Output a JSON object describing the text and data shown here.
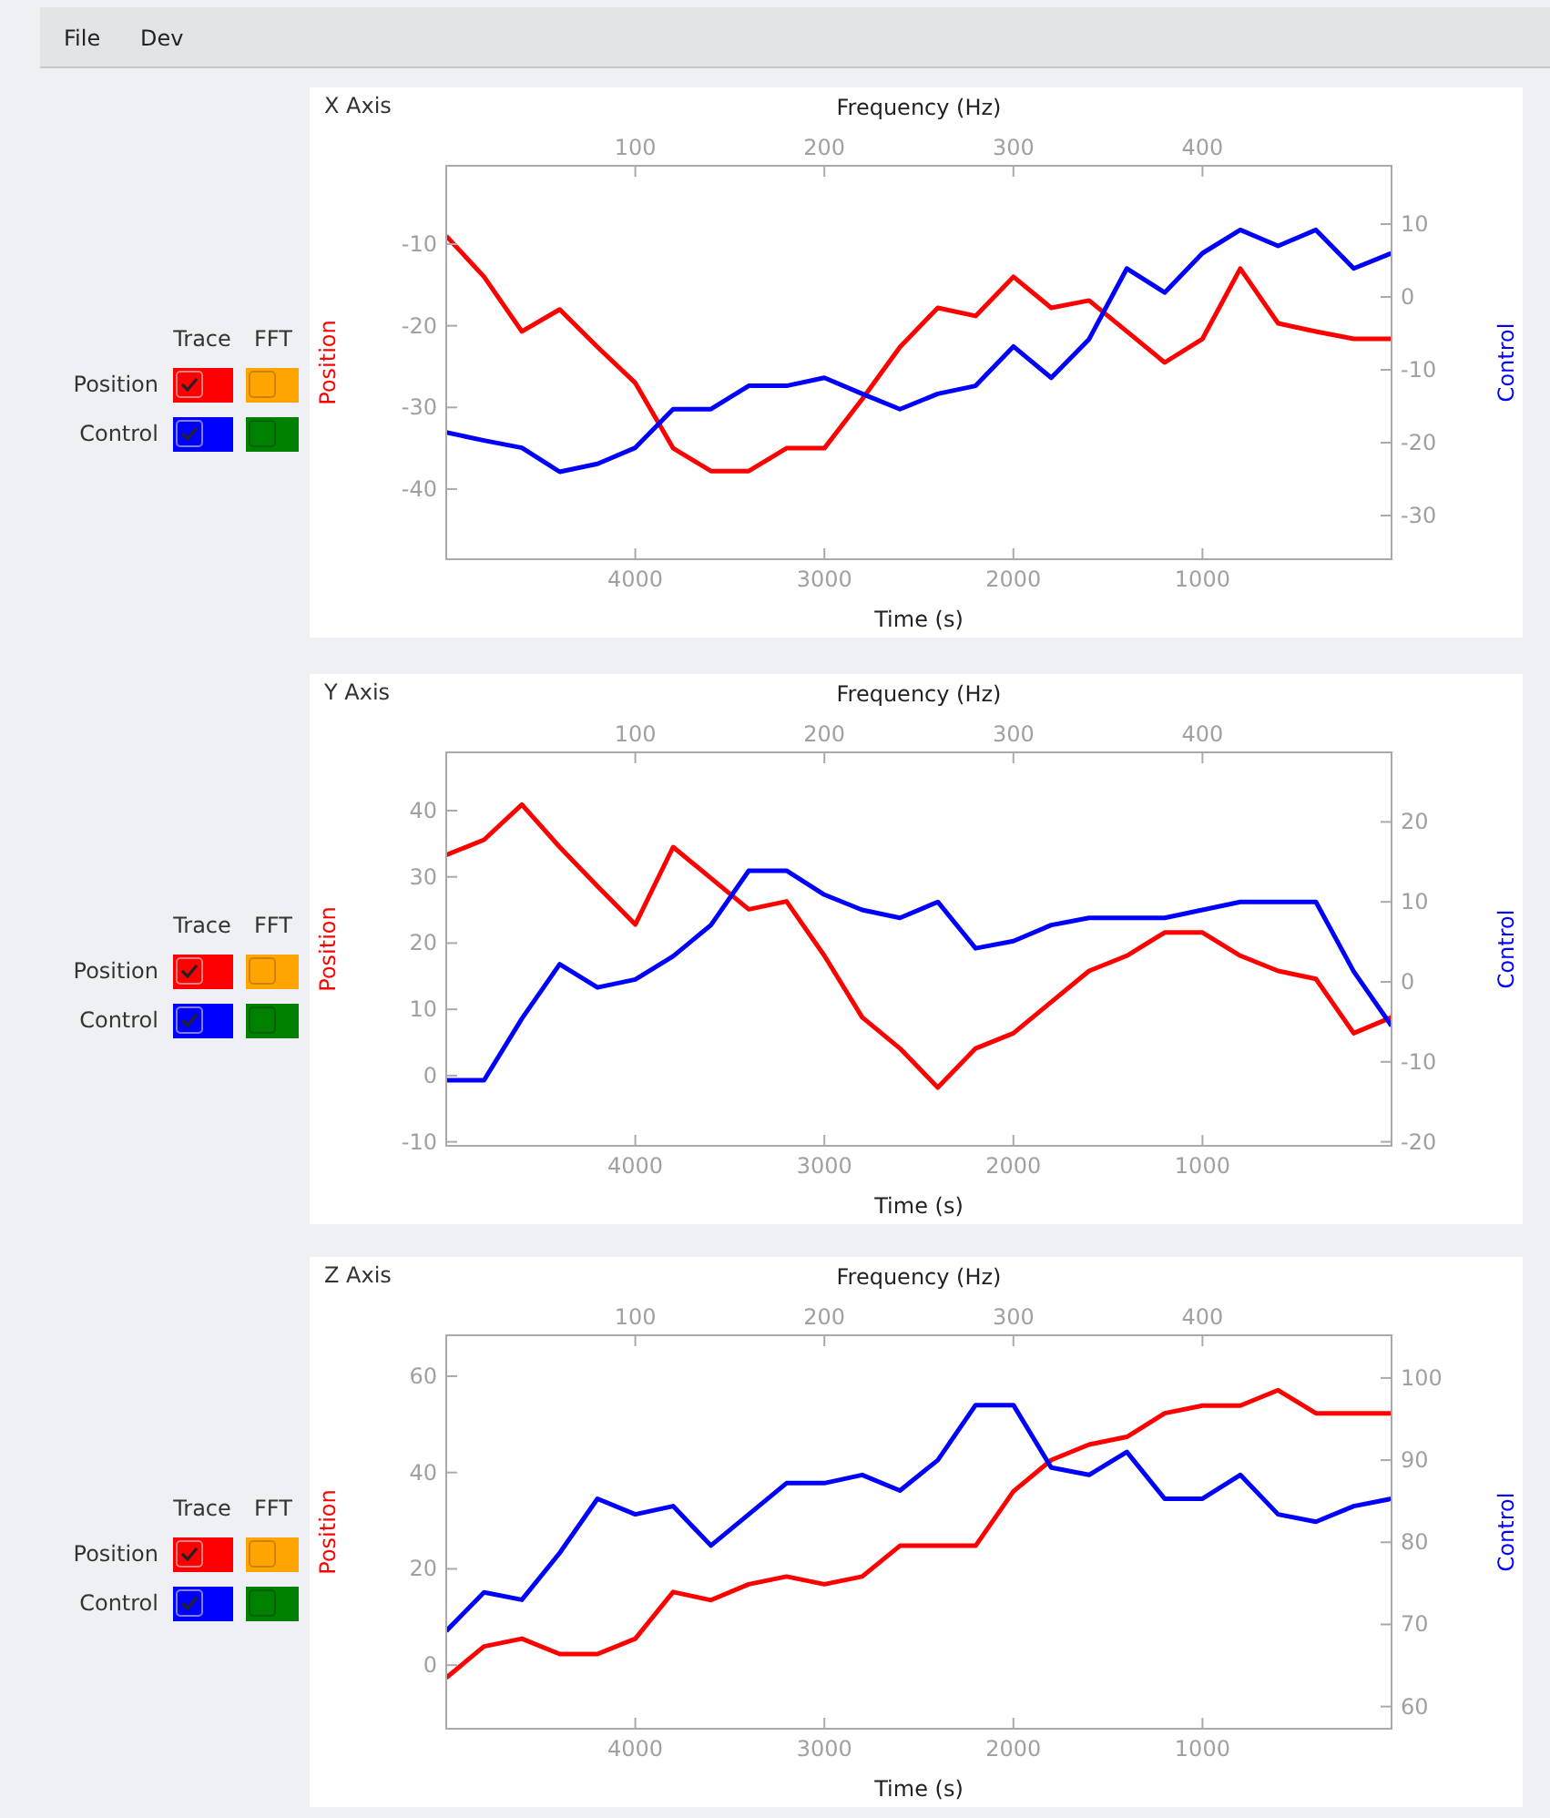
{
  "chart_data": [
    {
      "type": "line",
      "title": "X Axis",
      "xlabel": "Time (s)",
      "x2label": "Frequency (Hz)",
      "ylabel": "Position",
      "y2label": "Control",
      "annotations": [
        "Trace",
        "FFT",
        "File",
        "Dev"
      ],
      "legend": "left",
      "x": [
        5000,
        4800,
        4600,
        4400,
        4200,
        4000,
        3800,
        3600,
        3400,
        3200,
        3000,
        2800,
        2600,
        2400,
        2200,
        2000,
        1800,
        1600,
        1400,
        1200,
        1000,
        800,
        600,
        400,
        200,
        0
      ],
      "xlim": [
        5000,
        0
      ],
      "xticks": [
        4000,
        3000,
        2000,
        1000
      ],
      "x2lim": [
        0,
        500
      ],
      "x2ticks": [
        100,
        200,
        300,
        400
      ],
      "ylim": [
        -48.6,
        -0.4
      ],
      "yticks": [
        -40,
        -30,
        -20,
        -10
      ],
      "y2lim": [
        -36,
        18
      ],
      "y2ticks": [
        -30,
        -20,
        -10,
        0,
        10
      ],
      "series": [
        {
          "name": "Position",
          "color": "#ff0000",
          "values": [
            -9,
            -14,
            -20.7,
            -18,
            -22.6,
            -27,
            -35,
            -37.8,
            -37.8,
            -35,
            -35,
            -29,
            -22.6,
            -17.8,
            -18.8,
            -14,
            -17.8,
            -16.9,
            -20.7,
            -24.5,
            -21.6,
            -13,
            -19.7,
            -20.7,
            -21.6,
            -21.6
          ]
        },
        {
          "name": "Control",
          "color": "#0000ff",
          "axis": "y2",
          "values": [
            -18.6,
            -19.7,
            -20.7,
            -24,
            -22.9,
            -20.7,
            -15.4,
            -15.4,
            -12.2,
            -12.2,
            -11.1,
            -13.3,
            -15.4,
            -13.3,
            -12.2,
            -6.8,
            -11.1,
            -5.8,
            3.9,
            0.6,
            6,
            9.2,
            7,
            9.2,
            3.9,
            6
          ]
        }
      ]
    },
    {
      "type": "line",
      "title": "Y Axis",
      "xlabel": "Time (s)",
      "x2label": "Frequency (Hz)",
      "ylabel": "Position",
      "y2label": "Control",
      "annotations": [
        "Trace",
        "FFT"
      ],
      "legend": "left",
      "x": [
        5000,
        4800,
        4600,
        4400,
        4200,
        4000,
        3800,
        3600,
        3400,
        3200,
        3000,
        2800,
        2600,
        2400,
        2200,
        2000,
        1800,
        1600,
        1400,
        1200,
        1000,
        800,
        600,
        400,
        200,
        0
      ],
      "xlim": [
        5000,
        0
      ],
      "xticks": [
        4000,
        3000,
        2000,
        1000
      ],
      "x2lim": [
        0,
        500
      ],
      "x2ticks": [
        100,
        200,
        300,
        400
      ],
      "ylim": [
        -10.6,
        48.8
      ],
      "yticks": [
        -10,
        0,
        10,
        20,
        30,
        40
      ],
      "y2lim": [
        -20.5,
        28.7
      ],
      "y2ticks": [
        -20,
        -10,
        0,
        10,
        20
      ],
      "series": [
        {
          "name": "Position",
          "color": "#ff0000",
          "values": [
            33.3,
            35.6,
            40.9,
            34.5,
            28.6,
            22.8,
            34.5,
            29.8,
            25.1,
            26.3,
            18.1,
            8.8,
            4.1,
            -1.8,
            4.1,
            6.4,
            11.1,
            15.8,
            18.1,
            21.6,
            21.6,
            18.1,
            15.8,
            14.6,
            6.4,
            8.8
          ]
        },
        {
          "name": "Control",
          "color": "#0000ff",
          "axis": "y2",
          "values": [
            -12.3,
            -12.3,
            -4.6,
            2.2,
            -0.7,
            0.3,
            3.2,
            7.1,
            13.9,
            13.9,
            10.9,
            9,
            8,
            10,
            4.2,
            5.1,
            7.1,
            8,
            8,
            8,
            9,
            10,
            10,
            10,
            1.3,
            -5.5
          ]
        }
      ]
    },
    {
      "type": "line",
      "title": "Z Axis",
      "xlabel": "Time (s)",
      "x2label": "Frequency (Hz)",
      "ylabel": "Position",
      "y2label": "Control",
      "annotations": [
        "Trace",
        "FFT"
      ],
      "legend": "left",
      "x": [
        5000,
        4800,
        4600,
        4400,
        4200,
        4000,
        3800,
        3600,
        3400,
        3200,
        3000,
        2800,
        2600,
        2400,
        2200,
        2000,
        1800,
        1600,
        1400,
        1200,
        1000,
        800,
        600,
        400,
        200,
        0
      ],
      "xlim": [
        5000,
        0
      ],
      "xticks": [
        4000,
        3000,
        2000,
        1000
      ],
      "x2lim": [
        0,
        500
      ],
      "x2ticks": [
        100,
        200,
        300,
        400
      ],
      "ylim": [
        -13.2,
        68.5
      ],
      "yticks": [
        0,
        20,
        40,
        60
      ],
      "y2lim": [
        57.3,
        105.2
      ],
      "y2ticks": [
        60,
        70,
        80,
        90,
        100
      ],
      "series": [
        {
          "name": "Position",
          "color": "#ff0000",
          "values": [
            -2.6,
            3.9,
            5.5,
            2.3,
            2.3,
            5.5,
            15.2,
            13.5,
            16.8,
            18.4,
            16.8,
            18.4,
            24.8,
            24.8,
            24.8,
            36.1,
            42.6,
            45.8,
            47.4,
            52.3,
            53.9,
            53.9,
            57.1,
            52.3,
            52.3,
            52.3
          ]
        },
        {
          "name": "Control",
          "color": "#0000ff",
          "axis": "y2",
          "values": [
            69.2,
            73.9,
            73,
            78.7,
            85.3,
            83.4,
            84.4,
            79.6,
            83.4,
            87.2,
            87.2,
            88.2,
            86.3,
            90,
            96.7,
            96.7,
            89.1,
            88.2,
            91,
            85.3,
            85.3,
            88.2,
            83.4,
            82.5,
            84.4,
            85.3
          ]
        }
      ]
    }
  ]
}
